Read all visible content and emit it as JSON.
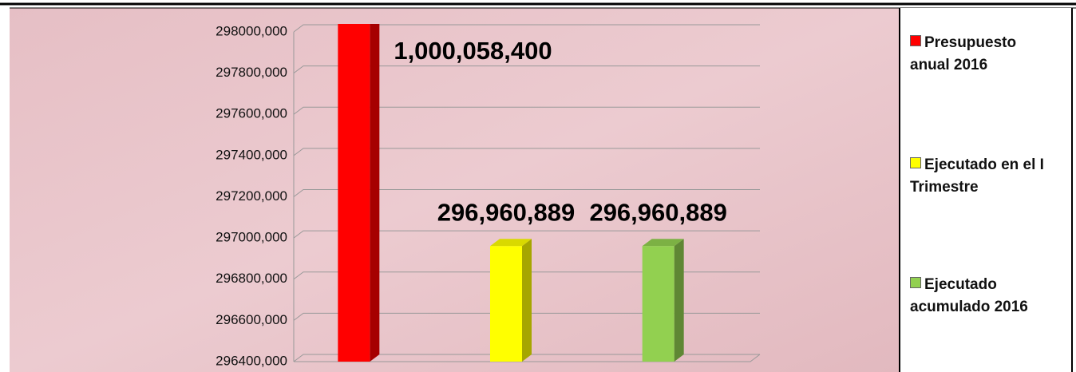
{
  "chart_data": {
    "type": "bar3d",
    "series": [
      {
        "name": "Presupuesto anual 2016",
        "color": "#ff0000",
        "values": [
          1000058400
        ],
        "value_labels": [
          "1,000,058,400"
        ]
      },
      {
        "name": "Ejecutado en el I Trimestre",
        "color": "#ffff00",
        "values": [
          296960889
        ],
        "value_labels": [
          "296,960,889"
        ]
      },
      {
        "name": "Ejecutado acumulado 2016",
        "color": "#92d050",
        "values": [
          296960889
        ],
        "value_labels": [
          "296,960,889"
        ]
      }
    ],
    "ylim": [
      296400000,
      298000000
    ],
    "yticks": [
      {
        "value": 296400000,
        "label": "296400,000"
      },
      {
        "value": 296600000,
        "label": "296600,000"
      },
      {
        "value": 296800000,
        "label": "296800,000"
      },
      {
        "value": 297000000,
        "label": "297000,000"
      },
      {
        "value": 297200000,
        "label": "297200,000"
      },
      {
        "value": 297400000,
        "label": "297400,000"
      },
      {
        "value": 297600000,
        "label": "297600,000"
      },
      {
        "value": 297800000,
        "label": "297800,000"
      },
      {
        "value": 298000000,
        "label": "298000,000"
      }
    ],
    "grid": true
  }
}
